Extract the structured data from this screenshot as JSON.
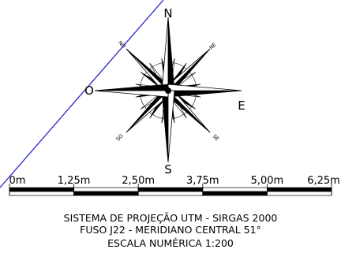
{
  "map": {
    "compass": {
      "north": "N",
      "south": "S",
      "east": "E",
      "west": "O",
      "northeast": "NE",
      "northwest": "NO",
      "southeast": "SE",
      "southwest": "SO"
    },
    "scale_bar": {
      "labels": [
        "0m",
        "1,25m",
        "2,50m",
        "3,75m",
        "5,00m",
        "6,25m"
      ],
      "unit": "m"
    },
    "captions": {
      "projection": "SISTEMA DE PROJEÇÃO UTM - SIRGAS 2000",
      "zone": "FUSO J22 - MERIDIANO CENTRAL 51°",
      "scale": "ESCALA NUMÉRICA 1:200"
    },
    "colors": {
      "boundary_line": "#2727c8",
      "ink": "#000000",
      "background": "#ffffff"
    }
  }
}
